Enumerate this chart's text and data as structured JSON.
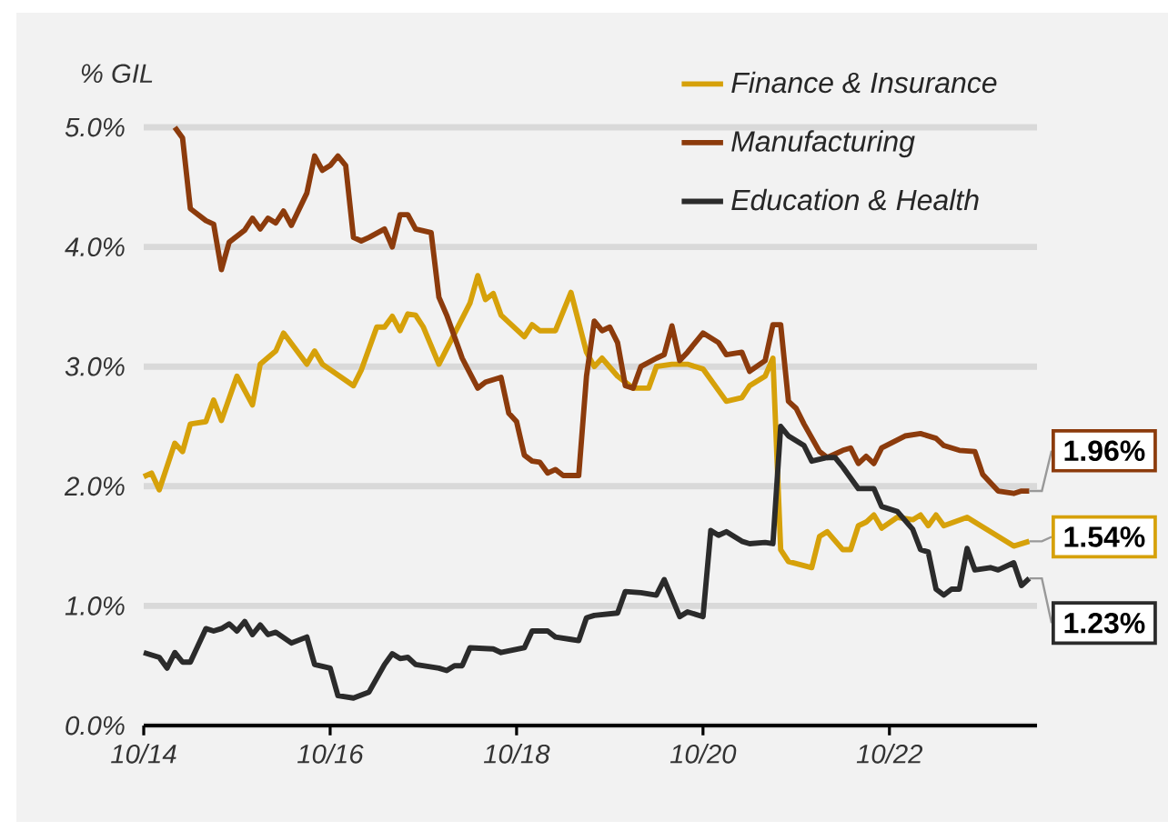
{
  "chart_data": {
    "type": "line",
    "ylabel": "% GIL",
    "grid": "y",
    "legend": "top right",
    "xlim": [
      "2014-10",
      "2024-05"
    ],
    "ylim": [
      0,
      5
    ],
    "xticks": [
      {
        "value": "2014-10",
        "label": "10/14"
      },
      {
        "value": "2016-10",
        "label": "10/16"
      },
      {
        "value": "2018-10",
        "label": "10/18"
      },
      {
        "value": "2020-10",
        "label": "10/20"
      },
      {
        "value": "2022-10",
        "label": "10/22"
      }
    ],
    "yticks": [
      {
        "value": 0,
        "label": "0.0%"
      },
      {
        "value": 1,
        "label": "1.0%"
      },
      {
        "value": 2,
        "label": "2.0%"
      },
      {
        "value": 3,
        "label": "3.0%"
      },
      {
        "value": 4,
        "label": "4.0%"
      },
      {
        "value": 5,
        "label": "5.0%"
      }
    ],
    "series": [
      {
        "name": "Finance & Insurance",
        "color": "#d6a10a",
        "x": [
          "2014-10",
          "2014-11",
          "2014-12",
          "2015-02",
          "2015-03",
          "2015-04",
          "2015-06",
          "2015-07",
          "2015-08",
          "2015-10",
          "2015-12",
          "2016-01",
          "2016-03",
          "2016-04",
          "2016-07",
          "2016-08",
          "2016-09",
          "2017-01",
          "2017-02",
          "2017-04",
          "2017-05",
          "2017-06",
          "2017-07",
          "2017-08",
          "2017-09",
          "2017-10",
          "2017-12",
          "2018-04",
          "2018-05",
          "2018-06",
          "2018-07",
          "2018-08",
          "2018-11",
          "2018-12",
          "2019-01",
          "2019-03",
          "2019-05",
          "2019-07",
          "2019-08",
          "2019-09",
          "2019-11",
          "2020-01",
          "2020-03",
          "2020-04",
          "2020-06",
          "2020-08",
          "2020-10",
          "2021-01",
          "2021-03",
          "2021-04",
          "2021-06",
          "2021-07",
          "2021-08",
          "2021-09",
          "2021-12",
          "2022-01",
          "2022-02",
          "2022-04",
          "2022-05",
          "2022-06",
          "2022-07",
          "2022-08",
          "2022-09",
          "2022-11",
          "2023-01",
          "2023-02",
          "2023-03",
          "2023-04",
          "2023-05",
          "2023-08",
          "2023-09",
          "2023-12",
          "2024-02",
          "2024-04"
        ],
        "values": [
          2.08,
          2.11,
          1.97,
          2.36,
          2.29,
          2.52,
          2.54,
          2.72,
          2.55,
          2.92,
          2.68,
          3.02,
          3.13,
          3.28,
          3.02,
          3.13,
          3.02,
          2.84,
          2.97,
          3.33,
          3.33,
          3.42,
          3.3,
          3.44,
          3.43,
          3.33,
          3.02,
          3.53,
          3.76,
          3.56,
          3.61,
          3.43,
          3.25,
          3.35,
          3.3,
          3.3,
          3.62,
          3.12,
          3.0,
          3.07,
          2.92,
          2.82,
          2.82,
          3.0,
          3.02,
          3.02,
          2.98,
          2.71,
          2.74,
          2.84,
          2.92,
          3.07,
          1.47,
          1.37,
          1.32,
          1.58,
          1.62,
          1.47,
          1.47,
          1.67,
          1.7,
          1.76,
          1.65,
          1.74,
          1.72,
          1.76,
          1.67,
          1.76,
          1.67,
          1.74,
          1.7,
          1.58,
          1.5,
          1.54
        ],
        "value_labels": [
          null,
          null,
          null,
          null,
          null,
          null,
          null,
          null,
          null,
          null,
          null,
          null,
          null,
          null,
          null,
          null,
          null,
          null,
          null,
          null,
          null,
          null,
          null,
          null,
          null,
          null,
          null,
          null,
          null,
          null,
          null,
          null,
          null,
          null,
          null,
          null,
          null,
          null,
          null,
          null,
          null,
          null,
          null,
          null,
          null,
          null,
          null,
          null,
          null,
          null,
          null,
          null,
          null,
          null,
          null,
          null,
          null,
          null,
          null,
          null,
          null,
          null,
          null,
          null,
          null,
          null,
          null,
          null,
          null,
          null,
          null,
          null,
          null,
          "1.54%"
        ]
      },
      {
        "name": "Manufacturing",
        "color": "#8c3b0c",
        "x": [
          "2015-02",
          "2015-03",
          "2015-04",
          "2015-06",
          "2015-07",
          "2015-08",
          "2015-09",
          "2015-11",
          "2015-12",
          "2016-01",
          "2016-02",
          "2016-03",
          "2016-04",
          "2016-05",
          "2016-07",
          "2016-08",
          "2016-09",
          "2016-10",
          "2016-11",
          "2016-12",
          "2017-01",
          "2017-02",
          "2017-03",
          "2017-05",
          "2017-06",
          "2017-07",
          "2017-08",
          "2017-09",
          "2017-11",
          "2017-12",
          "2018-01",
          "2018-03",
          "2018-05",
          "2018-06",
          "2018-08",
          "2018-09",
          "2018-10",
          "2018-11",
          "2018-12",
          "2019-01",
          "2019-02",
          "2019-03",
          "2019-04",
          "2019-06",
          "2019-07",
          "2019-08",
          "2019-09",
          "2019-10",
          "2019-11",
          "2019-12",
          "2020-01",
          "2020-02",
          "2020-04",
          "2020-05",
          "2020-06",
          "2020-07",
          "2020-08",
          "2020-10",
          "2020-12",
          "2021-01",
          "2021-03",
          "2021-04",
          "2021-06",
          "2021-07",
          "2021-08",
          "2021-09",
          "2021-10",
          "2021-11",
          "2022-01",
          "2022-02",
          "2022-04",
          "2022-05",
          "2022-06",
          "2022-07",
          "2022-08",
          "2022-09",
          "2022-12",
          "2023-02",
          "2023-04",
          "2023-05",
          "2023-07",
          "2023-09",
          "2023-10",
          "2023-12",
          "2024-02",
          "2024-03",
          "2024-04"
        ],
        "values": [
          5.0,
          4.91,
          4.32,
          4.22,
          4.19,
          3.81,
          4.04,
          4.14,
          4.24,
          4.15,
          4.24,
          4.2,
          4.3,
          4.18,
          4.45,
          4.76,
          4.64,
          4.68,
          4.76,
          4.68,
          4.08,
          4.05,
          4.08,
          4.15,
          4.0,
          4.27,
          4.27,
          4.15,
          4.12,
          3.58,
          3.43,
          3.07,
          2.82,
          2.87,
          2.91,
          2.61,
          2.54,
          2.26,
          2.21,
          2.2,
          2.11,
          2.14,
          2.09,
          2.09,
          2.92,
          3.38,
          3.3,
          3.33,
          3.2,
          2.84,
          2.82,
          3.0,
          3.07,
          3.1,
          3.34,
          3.05,
          3.12,
          3.28,
          3.2,
          3.1,
          3.12,
          2.96,
          3.05,
          3.35,
          3.35,
          2.71,
          2.65,
          2.52,
          2.29,
          2.24,
          2.3,
          2.32,
          2.19,
          2.25,
          2.19,
          2.32,
          2.42,
          2.44,
          2.4,
          2.34,
          2.3,
          2.29,
          2.1,
          1.96,
          1.94,
          1.96,
          1.96
        ],
        "value_labels": [
          null,
          null,
          null,
          null,
          null,
          null,
          null,
          null,
          null,
          null,
          null,
          null,
          null,
          null,
          null,
          null,
          null,
          null,
          null,
          null,
          null,
          null,
          null,
          null,
          null,
          null,
          null,
          null,
          null,
          null,
          null,
          null,
          null,
          null,
          null,
          null,
          null,
          null,
          null,
          null,
          null,
          null,
          null,
          null,
          null,
          null,
          null,
          null,
          null,
          null,
          null,
          null,
          null,
          null,
          null,
          null,
          null,
          null,
          null,
          null,
          null,
          null,
          null,
          null,
          null,
          null,
          null,
          null,
          null,
          null,
          null,
          null,
          null,
          null,
          null,
          null,
          null,
          null,
          null,
          null,
          null,
          null,
          null,
          null,
          null,
          null,
          "1.96%"
        ]
      },
      {
        "name": "Education & Health",
        "color": "#2b2b2b",
        "x": [
          "2014-10",
          "2014-12",
          "2015-01",
          "2015-02",
          "2015-03",
          "2015-04",
          "2015-06",
          "2015-07",
          "2015-08",
          "2015-09",
          "2015-10",
          "2015-11",
          "2015-12",
          "2016-01",
          "2016-02",
          "2016-03",
          "2016-05",
          "2016-07",
          "2016-08",
          "2016-10",
          "2016-11",
          "2017-01",
          "2017-03",
          "2017-05",
          "2017-06",
          "2017-07",
          "2017-08",
          "2017-09",
          "2017-12",
          "2018-01",
          "2018-02",
          "2018-03",
          "2018-04",
          "2018-07",
          "2018-08",
          "2018-11",
          "2018-12",
          "2019-02",
          "2019-03",
          "2019-05",
          "2019-06",
          "2019-07",
          "2019-08",
          "2019-11",
          "2019-12",
          "2020-02",
          "2020-04",
          "2020-05",
          "2020-07",
          "2020-08",
          "2020-10",
          "2020-11",
          "2020-12",
          "2021-01",
          "2021-03",
          "2021-04",
          "2021-06",
          "2021-07",
          "2021-08",
          "2021-09",
          "2021-11",
          "2021-12",
          "2022-02",
          "2022-03",
          "2022-04",
          "2022-06",
          "2022-08",
          "2022-09",
          "2022-11",
          "2023-01",
          "2023-02",
          "2023-03",
          "2023-04",
          "2023-05",
          "2023-06",
          "2023-07",
          "2023-08",
          "2023-09",
          "2023-11",
          "2023-12",
          "2024-02",
          "2024-03",
          "2024-04"
        ],
        "values": [
          0.61,
          0.57,
          0.48,
          0.61,
          0.53,
          0.53,
          0.81,
          0.79,
          0.81,
          0.85,
          0.79,
          0.87,
          0.76,
          0.84,
          0.76,
          0.78,
          0.69,
          0.74,
          0.51,
          0.48,
          0.25,
          0.23,
          0.28,
          0.51,
          0.6,
          0.56,
          0.57,
          0.51,
          0.48,
          0.46,
          0.5,
          0.5,
          0.65,
          0.64,
          0.61,
          0.65,
          0.79,
          0.79,
          0.74,
          0.72,
          0.71,
          0.9,
          0.92,
          0.94,
          1.12,
          1.11,
          1.09,
          1.22,
          0.91,
          0.95,
          0.91,
          1.63,
          1.59,
          1.62,
          1.54,
          1.52,
          1.53,
          1.52,
          2.5,
          2.42,
          2.34,
          2.21,
          2.24,
          2.24,
          2.16,
          1.98,
          1.98,
          1.83,
          1.79,
          1.64,
          1.47,
          1.45,
          1.14,
          1.09,
          1.14,
          1.14,
          1.48,
          1.3,
          1.32,
          1.3,
          1.36,
          1.17,
          1.23
        ],
        "value_labels": [
          null,
          null,
          null,
          null,
          null,
          null,
          null,
          null,
          null,
          null,
          null,
          null,
          null,
          null,
          null,
          null,
          null,
          null,
          null,
          null,
          null,
          null,
          null,
          null,
          null,
          null,
          null,
          null,
          null,
          null,
          null,
          null,
          null,
          null,
          null,
          null,
          null,
          null,
          null,
          null,
          null,
          null,
          null,
          null,
          null,
          null,
          null,
          null,
          null,
          null,
          null,
          null,
          null,
          null,
          null,
          null,
          null,
          null,
          null,
          null,
          null,
          null,
          null,
          null,
          null,
          null,
          null,
          null,
          null,
          null,
          null,
          null,
          null,
          null,
          null,
          null,
          null,
          null,
          null,
          null,
          null,
          null,
          "1.23%"
        ]
      }
    ]
  }
}
